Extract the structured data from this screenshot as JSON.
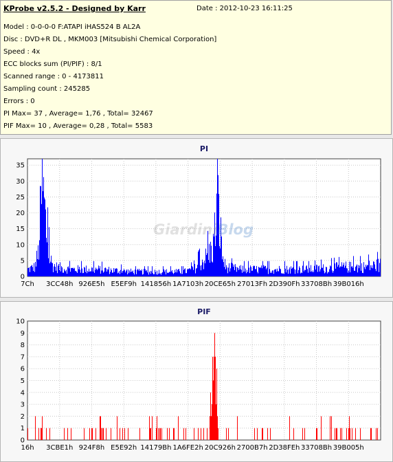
{
  "info": {
    "title": "KProbe v2.5.2 - Designed by Karr",
    "date": "Date : 2012-10-23 16:11:25",
    "lines": [
      "Model : 0-0-0-0 F:ATAPI   iHAS524   B      AL2A",
      "Disc : DVD+R DL , MKM003 [Mitsubishi Chemical Corporation]",
      "Speed : 4x",
      "ECC blocks sum (PI/PIF) : 8/1",
      "Scanned range : 0 - 4173811",
      "Sampling count : 245285",
      "Errors : 0",
      "PI Max= 37 , Average= 1,76 , Total= 32467",
      "PIF Max= 10 , Average= 0,28 , Total= 5583"
    ]
  },
  "watermark": {
    "main": "Giardini",
    "accent": "Blog"
  },
  "colors": {
    "pi": "#0000ff",
    "pif": "#ff0000",
    "plot_bg": "#ffffff",
    "grid": "#c8c8c8"
  },
  "chart_data": [
    {
      "type": "bar",
      "title": "PI",
      "ylim": [
        0,
        37
      ],
      "yticks": [
        0,
        5,
        10,
        15,
        20,
        25,
        30,
        35
      ],
      "xticks": [
        "7Ch",
        "3CC48h",
        "926E5h",
        "E5EF9h",
        "141856h",
        "1A7103h",
        "20CE65h",
        "27013Fh",
        "2D390Fh",
        "33708Bh",
        "39B016h"
      ],
      "grid": true,
      "profile": [
        [
          0.0,
          3
        ],
        [
          0.02,
          4
        ],
        [
          0.03,
          10
        ],
        [
          0.036,
          27
        ],
        [
          0.04,
          37
        ],
        [
          0.045,
          34
        ],
        [
          0.05,
          24
        ],
        [
          0.056,
          14
        ],
        [
          0.062,
          8
        ],
        [
          0.07,
          5
        ],
        [
          0.08,
          4
        ],
        [
          0.12,
          3
        ],
        [
          0.2,
          3
        ],
        [
          0.3,
          2
        ],
        [
          0.38,
          2
        ],
        [
          0.44,
          2
        ],
        [
          0.47,
          3
        ],
        [
          0.49,
          6
        ],
        [
          0.505,
          8
        ],
        [
          0.515,
          10
        ],
        [
          0.525,
          13
        ],
        [
          0.532,
          22
        ],
        [
          0.536,
          32
        ],
        [
          0.54,
          28
        ],
        [
          0.546,
          18
        ],
        [
          0.552,
          8
        ],
        [
          0.56,
          4
        ],
        [
          0.6,
          3
        ],
        [
          0.7,
          3
        ],
        [
          0.8,
          3
        ],
        [
          0.9,
          4
        ],
        [
          0.95,
          4
        ],
        [
          1.0,
          5
        ]
      ]
    },
    {
      "type": "bar",
      "title": "PIF",
      "ylim": [
        0,
        10
      ],
      "yticks": [
        0,
        1,
        2,
        3,
        4,
        5,
        6,
        7,
        8,
        9,
        10
      ],
      "xticks": [
        "16h",
        "3CBE1h",
        "924F8h",
        "E5E92h",
        "14179Bh",
        "1A6FE2h",
        "20C926h",
        "2700B7h",
        "2D38FEh",
        "33708Bh",
        "39B005h"
      ],
      "grid": true,
      "profile": [
        [
          0.0,
          1
        ],
        [
          0.05,
          1
        ],
        [
          0.1,
          1
        ],
        [
          0.17,
          1
        ],
        [
          0.2,
          2
        ],
        [
          0.35,
          1
        ],
        [
          0.49,
          1
        ],
        [
          0.505,
          1
        ],
        [
          0.515,
          3
        ],
        [
          0.521,
          5
        ],
        [
          0.526,
          10
        ],
        [
          0.53,
          9
        ],
        [
          0.535,
          6
        ],
        [
          0.54,
          2
        ],
        [
          0.56,
          1
        ],
        [
          0.7,
          1
        ],
        [
          0.8,
          1
        ],
        [
          0.9,
          1
        ],
        [
          0.94,
          2
        ],
        [
          1.0,
          2
        ]
      ]
    }
  ]
}
